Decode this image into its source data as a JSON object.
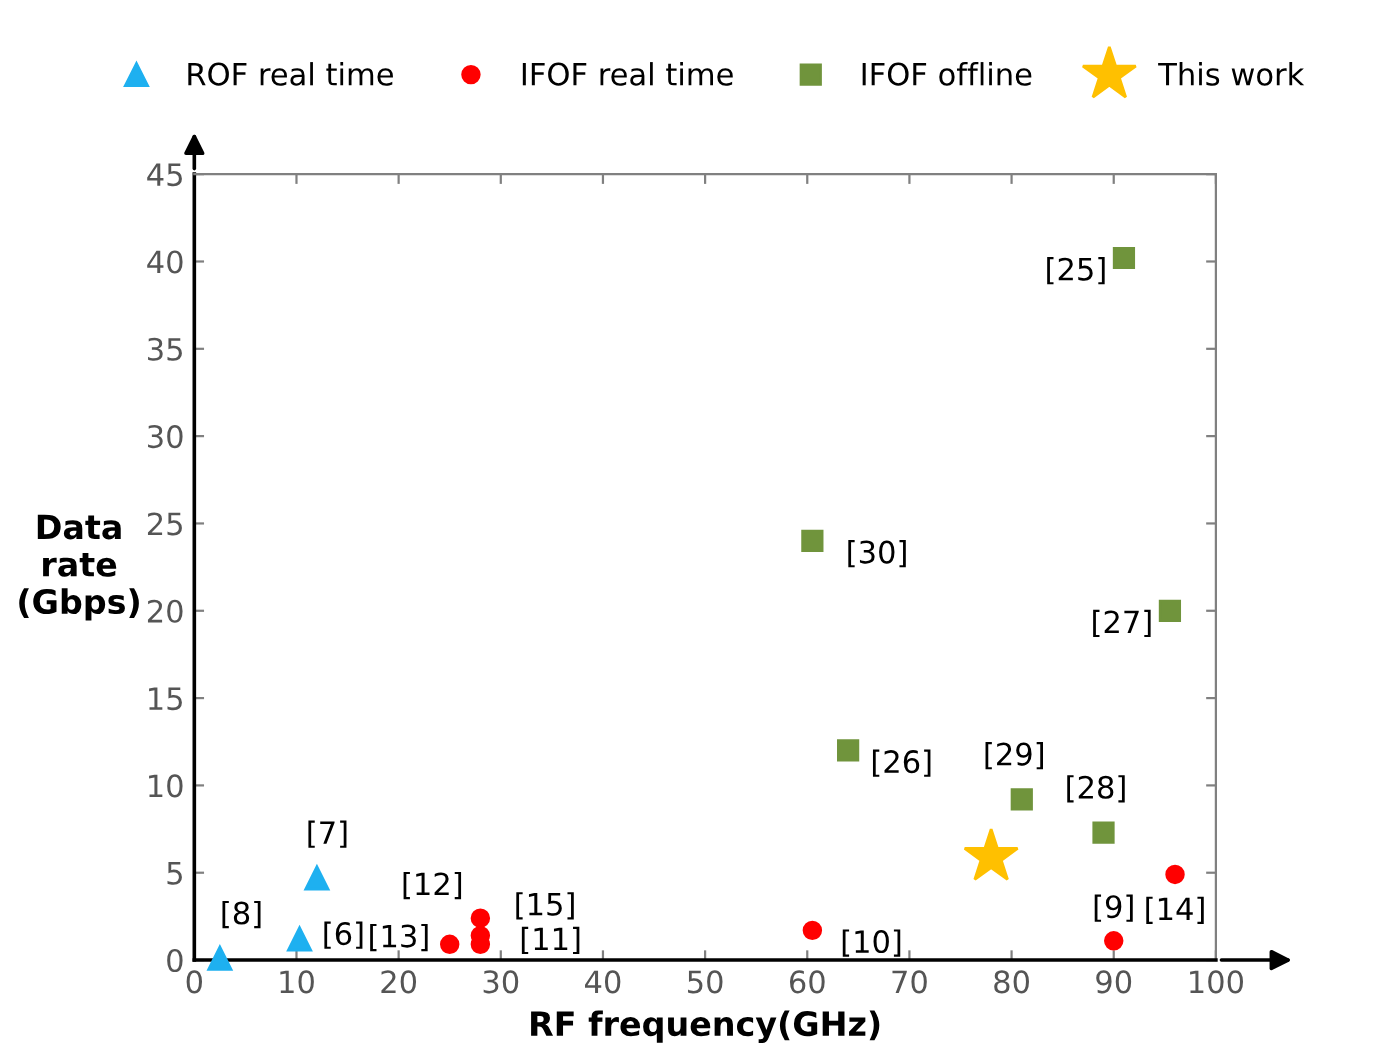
{
  "chart_data": {
    "type": "scatter",
    "xlabel": "RF frequency(GHz)",
    "ylabel": "Data\nrate\n(Gbps)",
    "xlim": [
      0,
      100
    ],
    "ylim": [
      0,
      45
    ],
    "xticks": [
      0,
      10,
      20,
      30,
      40,
      50,
      60,
      70,
      80,
      90,
      100
    ],
    "yticks": [
      0,
      5,
      10,
      15,
      20,
      25,
      30,
      35,
      40,
      45
    ],
    "grid": false,
    "legend": "top",
    "series": [
      {
        "name": "ROF real time",
        "color": "#1eb0f0",
        "marker": "triangle",
        "x": [
          2.5,
          10.3,
          12
        ],
        "values": [
          0.1,
          1.2,
          4.7
        ]
      },
      {
        "name": "IFOF real time",
        "color": "#ff0000",
        "marker": "circle",
        "x": [
          25,
          28,
          28,
          60.5,
          90,
          96,
          28
        ],
        "values": [
          0.9,
          2.4,
          0.9,
          1.7,
          1.1,
          4.9,
          1.4
        ]
      },
      {
        "name": "IFOF offline",
        "color": "#70943c",
        "marker": "square",
        "x": [
          91,
          60.5,
          95.5,
          64,
          81,
          89
        ],
        "values": [
          40.2,
          24,
          20,
          12,
          9.2,
          7.3
        ]
      },
      {
        "name": "This work",
        "color": "#ffc000",
        "marker": "star",
        "x": [
          78
        ],
        "values": [
          5.9
        ]
      }
    ],
    "annotations": [
      {
        "text": "[8]",
        "x": 2.5,
        "y": 0.1
      },
      {
        "text": "[6]",
        "x": 10.3,
        "y": 1.2
      },
      {
        "text": "[7]",
        "x": 12,
        "y": 4.7
      },
      {
        "text": "[13]",
        "x": 25,
        "y": 0.9
      },
      {
        "text": "[12]",
        "x": 28,
        "y": 2.4
      },
      {
        "text": "[15]",
        "x": 28,
        "y": 1.4
      },
      {
        "text": "[11]",
        "x": 28,
        "y": 0.9
      },
      {
        "text": "[10]",
        "x": 60.5,
        "y": 1.7
      },
      {
        "text": "[9]",
        "x": 90,
        "y": 1.1
      },
      {
        "text": "[14]",
        "x": 96,
        "y": 4.9
      },
      {
        "text": "[25]",
        "x": 91,
        "y": 40.2
      },
      {
        "text": "[30]",
        "x": 60.5,
        "y": 24
      },
      {
        "text": "[27]",
        "x": 95.5,
        "y": 20
      },
      {
        "text": "[26]",
        "x": 64,
        "y": 12
      },
      {
        "text": "[29]",
        "x": 81,
        "y": 9.2
      },
      {
        "text": "[28]",
        "x": 89,
        "y": 7.3
      }
    ]
  }
}
